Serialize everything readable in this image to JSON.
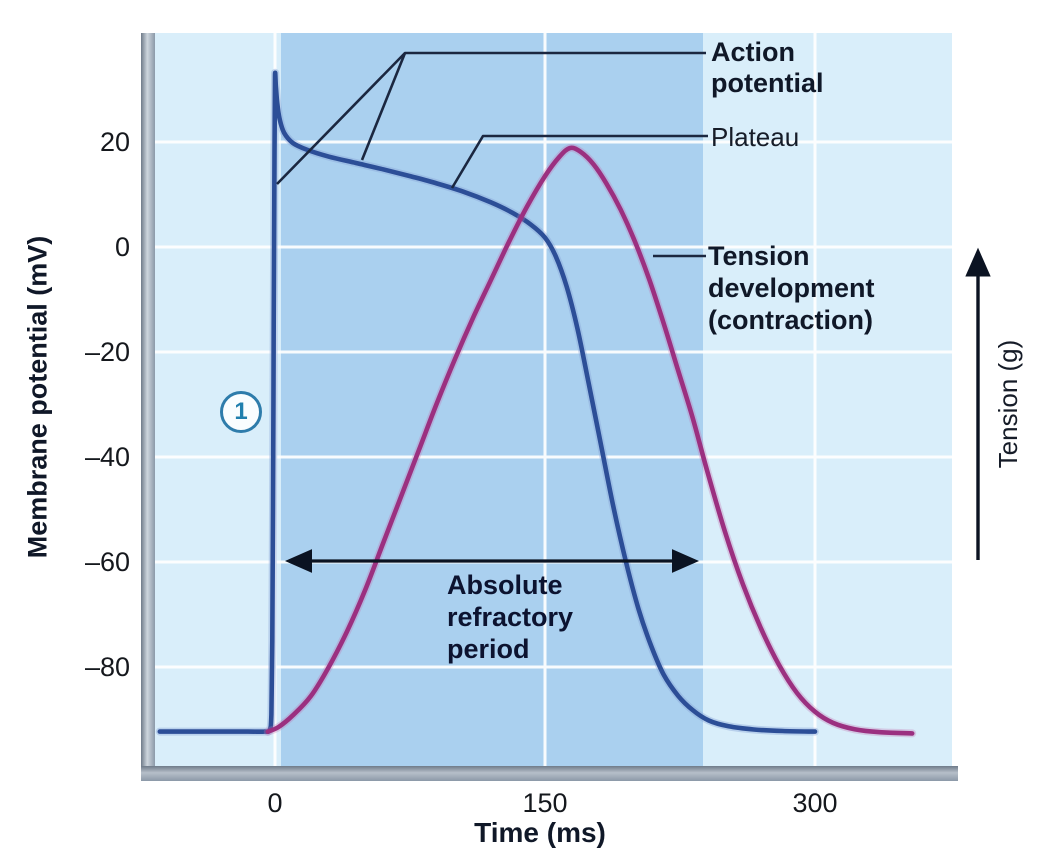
{
  "labels": {
    "y_axis_title": "Membrane potential (mV)",
    "x_axis_title": "Time (ms)",
    "right_axis_title": "Tension (g)",
    "annotation_action_potential": "Action\npotential",
    "annotation_plateau": "Plateau",
    "annotation_tension": "Tension\ndevelopment\n(contraction)",
    "annotation_refractory": "Absolute\nrefractory\nperiod",
    "step_marker": "1"
  },
  "ticks": {
    "y": [
      "20",
      "0",
      "–20",
      "–40",
      "–60",
      "–80"
    ],
    "x": [
      "0",
      "150",
      "300"
    ]
  },
  "colors": {
    "plot_background": "#d9eefa",
    "refractory_band": "#aad0ef",
    "gridline": "#ffffff",
    "action_potential_curve": "#2c4e97",
    "tension_curve": "#9b3080",
    "frame_gray": "#8c99a8",
    "marker_ring": "#2e7cab",
    "annotation_text": "#101828"
  },
  "chart_data": {
    "type": "line",
    "title": "",
    "xlabel": "Time (ms)",
    "ylabel": "Membrane potential (mV)",
    "y2label": "Tension (g)",
    "x_ticks": [
      0,
      150,
      300
    ],
    "y_ticks": [
      20,
      0,
      -20,
      -40,
      -60,
      -80
    ],
    "xlim": [
      -65,
      375
    ],
    "ylim": [
      -105,
      42
    ],
    "grid": true,
    "legend_position": "right-annotations",
    "series": [
      {
        "name": "Action potential",
        "axis": "left",
        "units": "mV",
        "color": "#2c4e97",
        "points": [
          [
            -64,
            -92.3
          ],
          [
            -35,
            -92.3
          ],
          [
            -15,
            -92.3
          ],
          [
            -6,
            -92.3
          ],
          [
            -3,
            -92
          ],
          [
            -2,
            -89
          ],
          [
            -1.5,
            -75
          ],
          [
            -1.1,
            -50
          ],
          [
            -0.7,
            -15
          ],
          [
            -0.3,
            18
          ],
          [
            0,
            32.5
          ],
          [
            0.5,
            30.5
          ],
          [
            1.2,
            27.5
          ],
          [
            2.5,
            24.5
          ],
          [
            5,
            21.8
          ],
          [
            10,
            19.8
          ],
          [
            18,
            18.5
          ],
          [
            30,
            17.2
          ],
          [
            45,
            16
          ],
          [
            60,
            14.8
          ],
          [
            75,
            13.5
          ],
          [
            90,
            12.1
          ],
          [
            105,
            10.5
          ],
          [
            120,
            8.5
          ],
          [
            132,
            6.5
          ],
          [
            142,
            4.3
          ],
          [
            150,
            1.8
          ],
          [
            156,
            -1.8
          ],
          [
            162,
            -7.5
          ],
          [
            168,
            -15.5
          ],
          [
            174,
            -25.5
          ],
          [
            181,
            -37.5
          ],
          [
            188,
            -49.5
          ],
          [
            195,
            -60
          ],
          [
            202,
            -69
          ],
          [
            209,
            -76
          ],
          [
            216,
            -81.5
          ],
          [
            224,
            -85.5
          ],
          [
            232,
            -88.2
          ],
          [
            241,
            -90.2
          ],
          [
            252,
            -91.3
          ],
          [
            266,
            -91.9
          ],
          [
            282,
            -92.2
          ],
          [
            300,
            -92.3
          ]
        ]
      },
      {
        "name": "Tension development (contraction)",
        "axis": "right",
        "units": "relative tension (g), unscaled axis",
        "color": "#9b3080",
        "points": [
          [
            -4,
            0.004
          ],
          [
            2,
            0.012
          ],
          [
            10,
            0.032
          ],
          [
            20,
            0.065
          ],
          [
            30,
            0.115
          ],
          [
            40,
            0.175
          ],
          [
            50,
            0.245
          ],
          [
            60,
            0.325
          ],
          [
            70,
            0.405
          ],
          [
            80,
            0.485
          ],
          [
            90,
            0.565
          ],
          [
            100,
            0.64
          ],
          [
            110,
            0.71
          ],
          [
            120,
            0.775
          ],
          [
            130,
            0.84
          ],
          [
            140,
            0.9
          ],
          [
            150,
            0.952
          ],
          [
            158,
            0.985
          ],
          [
            164,
            1.0
          ],
          [
            170,
            0.993
          ],
          [
            177,
            0.972
          ],
          [
            184,
            0.94
          ],
          [
            192,
            0.895
          ],
          [
            200,
            0.84
          ],
          [
            208,
            0.775
          ],
          [
            216,
            0.7
          ],
          [
            224,
            0.62
          ],
          [
            232,
            0.54
          ],
          [
            240,
            0.45
          ],
          [
            250,
            0.345
          ],
          [
            260,
            0.255
          ],
          [
            270,
            0.18
          ],
          [
            280,
            0.118
          ],
          [
            290,
            0.07
          ],
          [
            300,
            0.038
          ],
          [
            310,
            0.019
          ],
          [
            322,
            0.008
          ],
          [
            336,
            0.003
          ],
          [
            354,
            0.001
          ]
        ]
      }
    ],
    "annotations": [
      {
        "text": "Action potential",
        "points_to": "blue curve spike and early decline"
      },
      {
        "text": "Plateau",
        "points_to": "slowly declining phase of action potential"
      },
      {
        "text": "Tension development (contraction)",
        "points_to": "purple curve"
      },
      {
        "text": "Absolute refractory period",
        "points_to": "double-headed arrow over shaded band"
      }
    ],
    "shaded_region": {
      "label": "Absolute refractory period",
      "x_start_ms": 3,
      "x_end_ms": 238,
      "color": "#aad0ef"
    },
    "step_markers": [
      {
        "label": "1",
        "x_ms": -19,
        "y_mV": -31
      }
    ]
  }
}
